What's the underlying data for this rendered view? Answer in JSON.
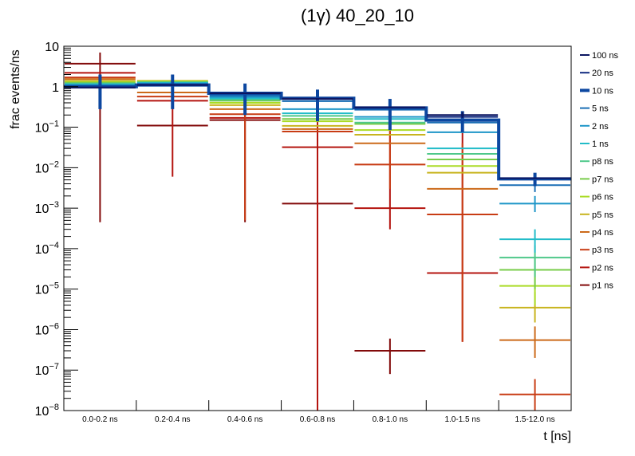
{
  "chart_data": {
    "type": "line",
    "subtype": "step-histogram-with-error-bars",
    "title": "(1γ) 40_20_10",
    "xlabel": "t [ns]",
    "ylabel": "frac events/ns",
    "yscale": "log",
    "ylim": [
      1e-08,
      10
    ],
    "y_tick_labels": [
      {
        "base": "10",
        "exp": ""
      },
      {
        "base": "1",
        "exp": ""
      },
      {
        "base": "10",
        "exp": "−1"
      },
      {
        "base": "10",
        "exp": "−2"
      },
      {
        "base": "10",
        "exp": "−3"
      },
      {
        "base": "10",
        "exp": "−4"
      },
      {
        "base": "10",
        "exp": "−5"
      },
      {
        "base": "10",
        "exp": "−6"
      },
      {
        "base": "10",
        "exp": "−7"
      },
      {
        "base": "10",
        "exp": "−8"
      }
    ],
    "categories": [
      "0.0-0.2 ns",
      "0.2-0.4 ns",
      "0.4-0.6 ns",
      "0.6-0.8 ns",
      "0.8-1.0 ns",
      "1.0-1.5 ns",
      "1.5-12.0 ns"
    ],
    "legend_position": "right",
    "grid": false,
    "highlight_series": "10 ns",
    "series": [
      {
        "name": "100 ns",
        "color": "#0b1561",
        "values": [
          0.95,
          1.1,
          0.69,
          0.5,
          0.31,
          0.2,
          0.0055
        ],
        "err_lo": [
          null,
          null,
          null,
          null,
          null,
          0.17,
          null
        ],
        "err_hi": [
          null,
          null,
          null,
          null,
          null,
          0.24,
          null
        ]
      },
      {
        "name": "20 ns",
        "color": "#102b80",
        "values": [
          0.97,
          1.1,
          0.69,
          0.51,
          0.31,
          0.18,
          0.0055
        ],
        "err_lo": [
          null,
          null,
          null,
          null,
          null,
          null,
          null
        ],
        "err_hi": [
          null,
          null,
          null,
          null,
          null,
          null,
          null
        ]
      },
      {
        "name": "10 ns",
        "color": "#0c47a0",
        "values": [
          1.0,
          1.1,
          0.69,
          0.52,
          0.3,
          0.15,
          0.0053
        ],
        "err_lo": [
          0.28,
          0.28,
          0.2,
          0.14,
          0.085,
          0.075,
          0.0035
        ],
        "err_hi": [
          2.0,
          2.0,
          1.2,
          0.85,
          0.5,
          0.25,
          0.0075
        ]
      },
      {
        "name": "5 ns",
        "color": "#1a6eb5",
        "values": [
          1.05,
          1.15,
          0.6,
          0.44,
          0.27,
          0.13,
          0.0037
        ],
        "err_lo": [
          null,
          null,
          null,
          null,
          null,
          null,
          0.0025
        ],
        "err_hi": [
          null,
          null,
          null,
          null,
          null,
          null,
          0.005
        ]
      },
      {
        "name": "2 ns",
        "color": "#1e96c8",
        "values": [
          1.1,
          1.2,
          0.56,
          0.28,
          0.18,
          0.075,
          0.0013
        ],
        "err_lo": [
          null,
          null,
          null,
          null,
          null,
          null,
          0.0008
        ],
        "err_hi": [
          null,
          null,
          null,
          null,
          null,
          null,
          0.002
        ]
      },
      {
        "name": "1 ns",
        "color": "#22bcc8",
        "values": [
          1.15,
          1.25,
          0.52,
          0.22,
          0.16,
          0.03,
          0.00017
        ],
        "err_lo": [
          null,
          null,
          null,
          null,
          null,
          null,
          8e-05
        ],
        "err_hi": [
          null,
          null,
          null,
          null,
          null,
          null,
          0.0003
        ]
      },
      {
        "name": "p8 ns",
        "color": "#4ec88a",
        "values": [
          1.2,
          1.28,
          0.48,
          0.19,
          0.13,
          0.022,
          6e-05
        ],
        "err_lo": [
          null,
          null,
          null,
          null,
          null,
          null,
          2e-05
        ],
        "err_hi": [
          null,
          null,
          null,
          null,
          null,
          null,
          0.00012
        ]
      },
      {
        "name": "p7 ns",
        "color": "#78cc4a",
        "values": [
          1.25,
          1.3,
          0.45,
          0.16,
          0.12,
          0.016,
          3e-05
        ],
        "err_lo": [
          null,
          null,
          null,
          null,
          null,
          null,
          1e-05
        ],
        "err_hi": [
          null,
          null,
          null,
          null,
          null,
          null,
          6e-05
        ]
      },
      {
        "name": "p6 ns",
        "color": "#aadc26",
        "values": [
          1.3,
          1.35,
          0.4,
          0.14,
          0.085,
          0.011,
          1.2e-05
        ],
        "err_lo": [
          null,
          null,
          null,
          null,
          null,
          null,
          4e-06
        ],
        "err_hi": [
          null,
          null,
          null,
          null,
          null,
          null,
          3e-05
        ]
      },
      {
        "name": "p5 ns",
        "color": "#c8b41e",
        "values": [
          1.4,
          1.4,
          0.35,
          0.108,
          0.065,
          0.0075,
          3.5e-06
        ],
        "err_lo": [
          null,
          null,
          null,
          null,
          null,
          null,
          1.5e-06
        ],
        "err_hi": [
          null,
          null,
          null,
          null,
          null,
          null,
          8.5e-06
        ]
      },
      {
        "name": "p4 ns",
        "color": "#cc6a1a",
        "values": [
          1.55,
          0.72,
          0.28,
          0.09,
          0.04,
          0.003,
          5.5e-07
        ],
        "err_lo": [
          null,
          null,
          null,
          null,
          null,
          null,
          2e-07
        ],
        "err_hi": [
          null,
          null,
          null,
          null,
          null,
          null,
          1.2e-06
        ]
      },
      {
        "name": "p3 ns",
        "color": "#c83c14",
        "values": [
          1.7,
          0.57,
          0.21,
          0.078,
          0.012,
          0.0007,
          2.5e-08
        ],
        "err_lo": [
          null,
          null,
          0.0005,
          null,
          0.003,
          5e-07,
          1e-08
        ],
        "err_hi": [
          null,
          null,
          1.0,
          null,
          0.1,
          0.04,
          6e-08
        ]
      },
      {
        "name": "p2 ns",
        "color": "#b4140f",
        "values": [
          2.2,
          0.45,
          0.17,
          0.032,
          0.001,
          2.5e-05,
          null
        ],
        "err_lo": [
          null,
          0.006,
          null,
          1e-08,
          0.0003,
          5e-07,
          null
        ],
        "err_hi": [
          null,
          2.0,
          null,
          0.7,
          0.3,
          0.1,
          null
        ]
      },
      {
        "name": "p1 ns",
        "color": "#820a0a",
        "values": [
          3.7,
          0.11,
          0.15,
          0.0013,
          3e-07,
          null,
          null
        ],
        "err_lo": [
          0.00045,
          null,
          0.00045,
          1e-08,
          8e-08,
          null,
          null
        ],
        "err_hi": [
          7.0,
          null,
          0.6,
          0.2,
          6e-07,
          null,
          null
        ]
      }
    ]
  }
}
